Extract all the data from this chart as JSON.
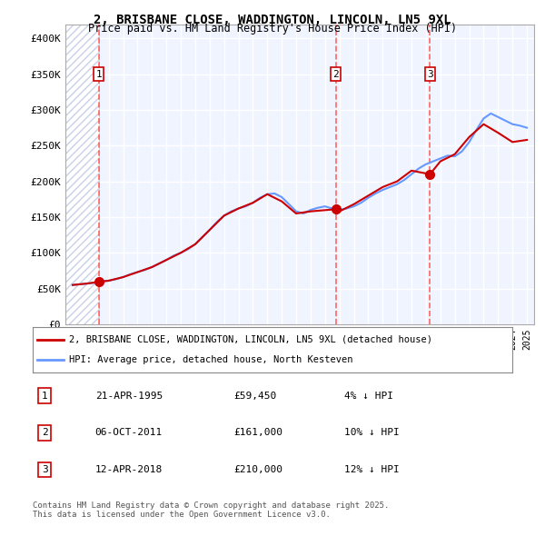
{
  "title_line1": "2, BRISBANE CLOSE, WADDINGTON, LINCOLN, LN5 9XL",
  "title_line2": "Price paid vs. HM Land Registry's House Price Index (HPI)",
  "ylabel_ticks": [
    "£0",
    "£50K",
    "£100K",
    "£150K",
    "£200K",
    "£250K",
    "£300K",
    "£350K",
    "£400K"
  ],
  "ytick_values": [
    0,
    50000,
    100000,
    150000,
    200000,
    250000,
    300000,
    350000,
    400000
  ],
  "ylim": [
    0,
    420000
  ],
  "background_color": "#f0f4ff",
  "hatch_color": "#c8d0e8",
  "grid_color": "#ffffff",
  "sale_markers": [
    {
      "date_num": 1995.31,
      "price": 59450,
      "label": "1"
    },
    {
      "date_num": 2011.76,
      "price": 161000,
      "label": "2"
    },
    {
      "date_num": 2018.28,
      "price": 210000,
      "label": "3"
    }
  ],
  "vline_dates": [
    1995.31,
    2011.76,
    2018.28
  ],
  "hpi_line_color": "#6699ff",
  "price_line_color": "#cc0000",
  "legend_items": [
    {
      "label": "2, BRISBANE CLOSE, WADDINGTON, LINCOLN, LN5 9XL (detached house)",
      "color": "#cc0000"
    },
    {
      "label": "HPI: Average price, detached house, North Kesteven",
      "color": "#6699ff"
    }
  ],
  "table_rows": [
    {
      "num": "1",
      "date": "21-APR-1995",
      "price": "£59,450",
      "note": "4% ↓ HPI"
    },
    {
      "num": "2",
      "date": "06-OCT-2011",
      "price": "£161,000",
      "note": "10% ↓ HPI"
    },
    {
      "num": "3",
      "date": "12-APR-2018",
      "price": "£210,000",
      "note": "12% ↓ HPI"
    }
  ],
  "footnote": "Contains HM Land Registry data © Crown copyright and database right 2025.\nThis data is licensed under the Open Government Licence v3.0.",
  "hpi_data": {
    "years": [
      1993.5,
      1994.0,
      1994.5,
      1995.0,
      1995.5,
      1996.0,
      1996.5,
      1997.0,
      1997.5,
      1998.0,
      1998.5,
      1999.0,
      1999.5,
      2000.0,
      2000.5,
      2001.0,
      2001.5,
      2002.0,
      2002.5,
      2003.0,
      2003.5,
      2004.0,
      2004.5,
      2005.0,
      2005.5,
      2006.0,
      2006.5,
      2007.0,
      2007.5,
      2008.0,
      2008.5,
      2009.0,
      2009.5,
      2010.0,
      2010.5,
      2011.0,
      2011.5,
      2012.0,
      2012.5,
      2013.0,
      2013.5,
      2014.0,
      2014.5,
      2015.0,
      2015.5,
      2016.0,
      2016.5,
      2017.0,
      2017.5,
      2018.0,
      2018.5,
      2019.0,
      2019.5,
      2020.0,
      2020.5,
      2021.0,
      2021.5,
      2022.0,
      2022.5,
      2023.0,
      2023.5,
      2024.0,
      2024.5,
      2025.0
    ],
    "values": [
      55000,
      56000,
      57000,
      58000,
      60000,
      61000,
      63000,
      66000,
      70000,
      73000,
      76000,
      80000,
      85000,
      90000,
      96000,
      100000,
      105000,
      112000,
      122000,
      132000,
      143000,
      152000,
      158000,
      162000,
      165000,
      170000,
      177000,
      182000,
      183000,
      178000,
      168000,
      158000,
      155000,
      160000,
      163000,
      165000,
      162000,
      160000,
      162000,
      165000,
      170000,
      177000,
      183000,
      188000,
      192000,
      196000,
      202000,
      210000,
      218000,
      224000,
      228000,
      232000,
      236000,
      235000,
      242000,
      255000,
      272000,
      288000,
      295000,
      290000,
      285000,
      280000,
      278000,
      275000
    ]
  },
  "price_paid_data": {
    "years": [
      1993.5,
      1994.0,
      1994.5,
      1995.31,
      1996.0,
      1997.0,
      1998.0,
      1999.0,
      2000.0,
      2001.0,
      2002.0,
      2003.0,
      2004.0,
      2005.0,
      2006.0,
      2007.0,
      2008.0,
      2009.0,
      2010.0,
      2011.76,
      2012.0,
      2013.0,
      2014.0,
      2015.0,
      2016.0,
      2017.0,
      2018.28,
      2019.0,
      2020.0,
      2021.0,
      2022.0,
      2023.0,
      2024.0,
      2025.0
    ],
    "values": [
      55000,
      56000,
      57000,
      59450,
      61000,
      66000,
      73000,
      80000,
      90000,
      100000,
      112000,
      132000,
      152000,
      162000,
      170000,
      182000,
      172000,
      155000,
      158000,
      161000,
      158000,
      168000,
      180000,
      192000,
      200000,
      215000,
      210000,
      228000,
      238000,
      262000,
      280000,
      268000,
      255000,
      258000
    ]
  }
}
